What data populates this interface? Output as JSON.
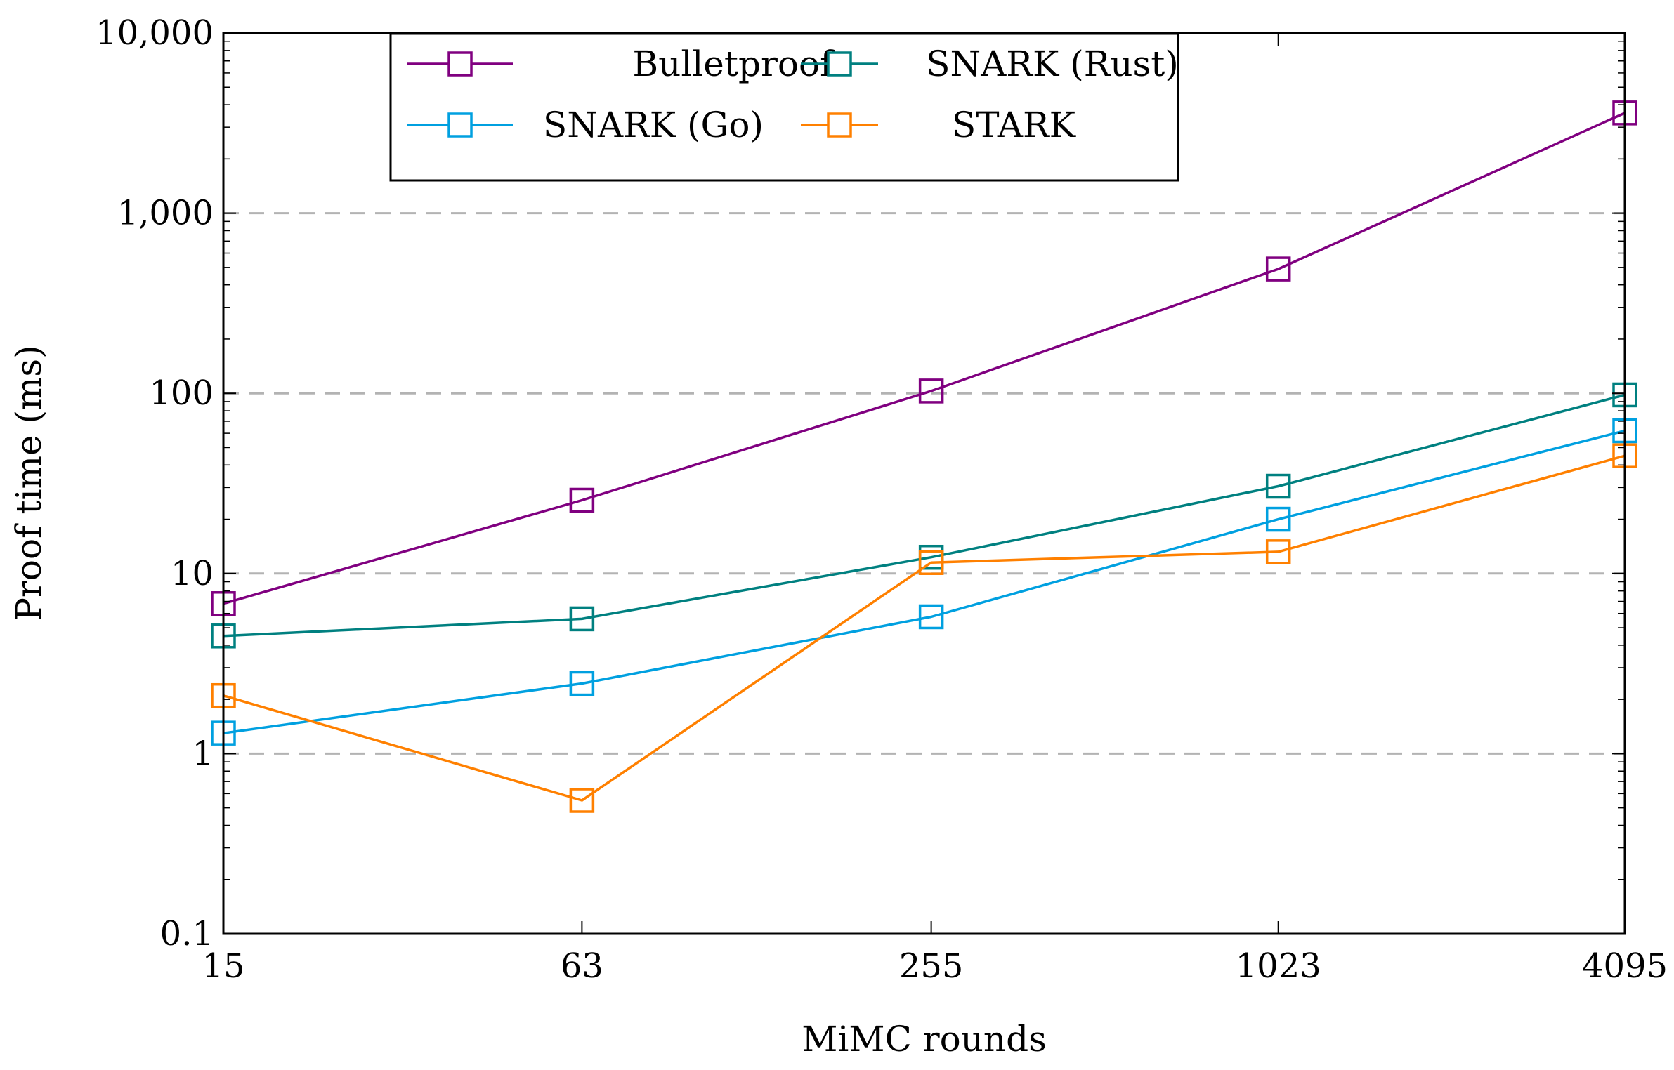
{
  "chart_data": {
    "type": "line",
    "title": "",
    "xlabel": "MiMC rounds",
    "ylabel": "Proof time (ms)",
    "x_scale": "log2",
    "y_scale": "log10",
    "categories": [
      "15",
      "63",
      "255",
      "1023",
      "4095"
    ],
    "x": [
      15,
      63,
      255,
      1023,
      4095
    ],
    "ylim": [
      0.1,
      10000
    ],
    "y_ticks": [
      0.1,
      1,
      10,
      100,
      1000,
      10000
    ],
    "y_tick_labels": [
      "0.1",
      "1",
      "10",
      "100",
      "1,000",
      "10,000"
    ],
    "grid": "horizontal dashed at major y ticks",
    "legend_position": "top-left",
    "series": [
      {
        "name": "Bulletproof",
        "color": "#800080",
        "marker": "open-square",
        "values": [
          6.8,
          25.5,
          103,
          490,
          3600
        ]
      },
      {
        "name": "SNARK (Rust)",
        "color": "#008080",
        "marker": "open-square",
        "values": [
          4.5,
          5.6,
          12.3,
          30.5,
          98
        ]
      },
      {
        "name": "SNARK (Go)",
        "color": "#00A0E0",
        "marker": "open-square",
        "values": [
          1.3,
          2.45,
          5.75,
          20,
          62
        ]
      },
      {
        "name": "STARK",
        "color": "#FF8000",
        "marker": "open-square",
        "values": [
          2.1,
          0.55,
          11.5,
          13.2,
          45
        ]
      }
    ]
  }
}
